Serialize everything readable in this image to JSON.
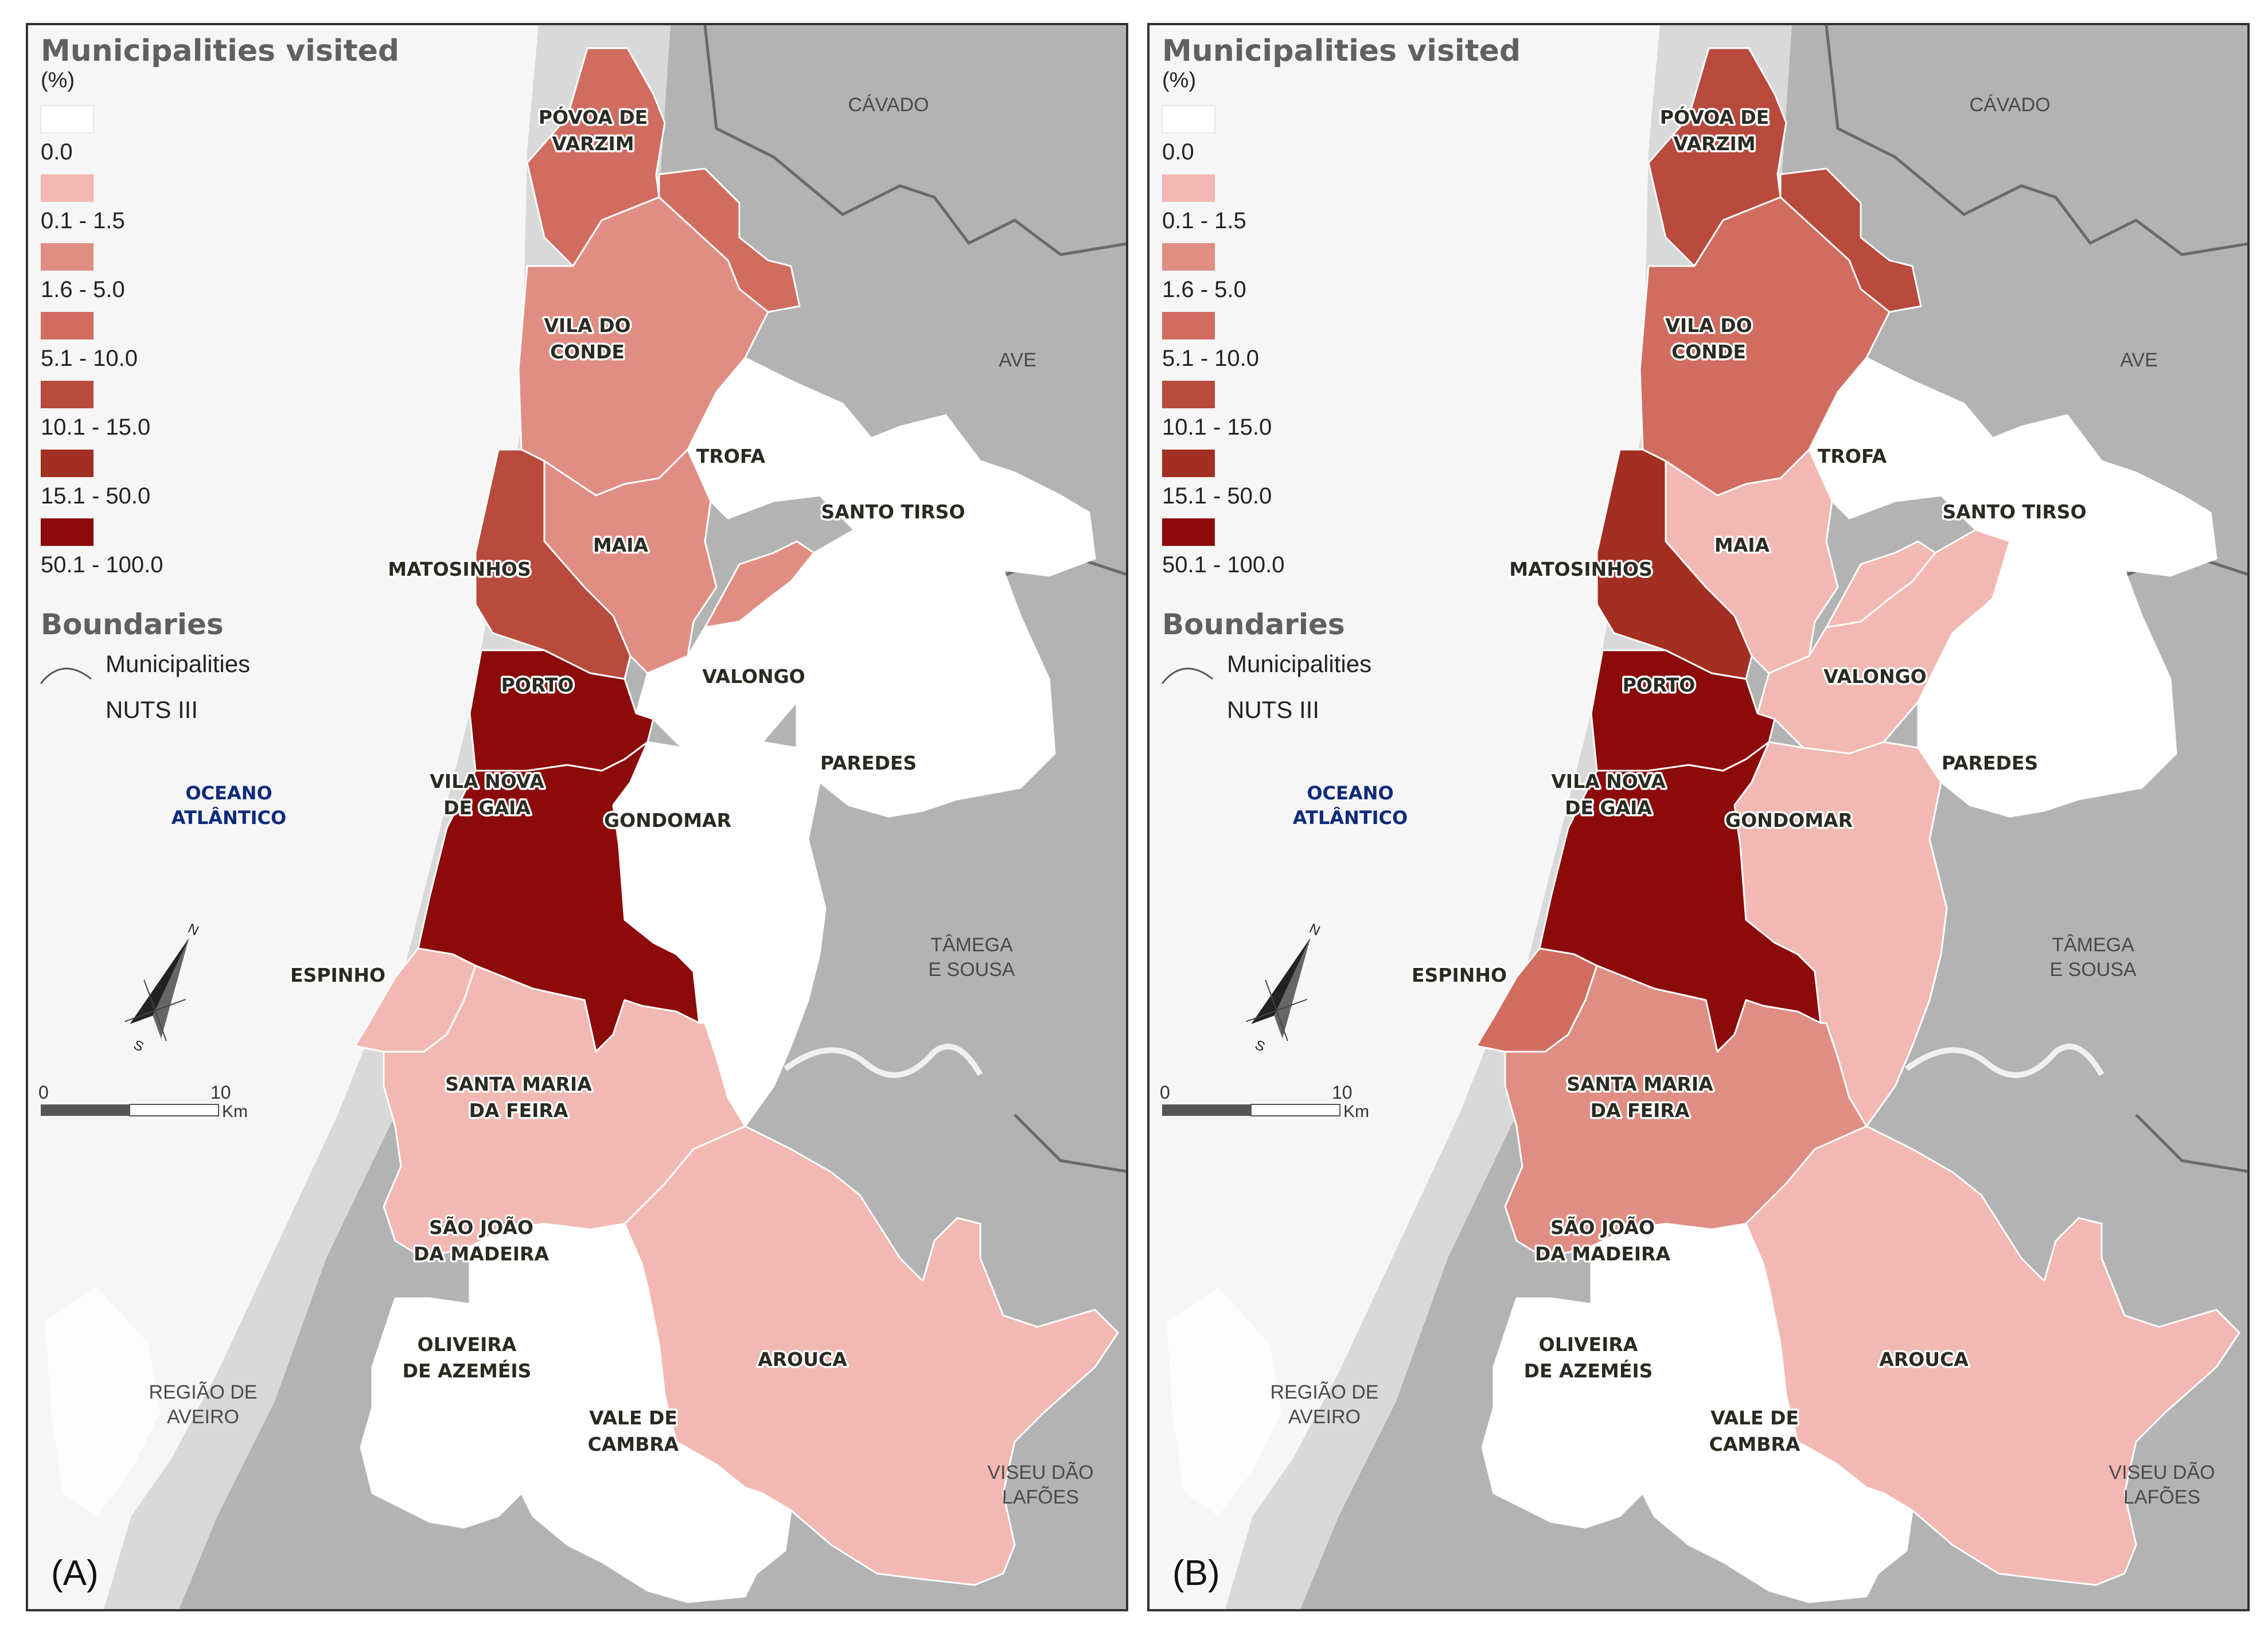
{
  "legend": {
    "title": "Municipalities visited",
    "unit": "(%)",
    "classes": [
      {
        "label": "0.0",
        "color": "#ffffff"
      },
      {
        "label": "0.1 - 1.5",
        "color": "#f2b8b3"
      },
      {
        "label": "1.6 - 5.0",
        "color": "#e08e84"
      },
      {
        "label": "5.1 - 10.0",
        "color": "#d16c60"
      },
      {
        "label": "10.1 - 15.0",
        "color": "#b84a3e"
      },
      {
        "label": "15.1 - 50.0",
        "color": "#a32e22"
      },
      {
        "label": "50.1 - 100.0",
        "color": "#8c0a0a"
      }
    ],
    "boundaries_title": "Boundaries",
    "boundary_municipalities": "Municipalities",
    "boundary_nuts": "NUTS III"
  },
  "scale": {
    "zero": "0",
    "ten": "10",
    "unit": "Km"
  },
  "ocean": {
    "line1": "OCEANO",
    "line2": "ATLÂNTICO"
  },
  "nuts_regions": {
    "cavado": "CÁVADO",
    "ave": "AVE",
    "tamega_line1": "TÂMEGA",
    "tamega_line2": "E SOUSA",
    "aveiro_line1": "REGIÃO DE",
    "aveiro_line2": "AVEIRO",
    "viseu_line1": "VISEU DÃO",
    "viseu_line2": "LAFÕES"
  },
  "municipality_labels": {
    "povoa_1": "PÓVOA DE",
    "povoa_2": "VARZIM",
    "vila_conde_1": "VILA DO",
    "vila_conde_2": "CONDE",
    "trofa": "TROFA",
    "santo_tirso": "SANTO TIRSO",
    "maia": "MAIA",
    "matosinhos": "MATOSINHOS",
    "porto": "PORTO",
    "valongo": "VALONGO",
    "paredes": "PAREDES",
    "gaia_1": "VILA NOVA",
    "gaia_2": "DE GAIA",
    "gondomar": "GONDOMAR",
    "espinho": "ESPINHO",
    "feira_1": "SANTA MARIA",
    "feira_2": "DA FEIRA",
    "sjm_1": "SÃO JOÃO",
    "sjm_2": "DA MADEIRA",
    "oaz_1": "OLIVEIRA",
    "oaz_2": "DE AZEMÉIS",
    "vale_1": "VALE DE",
    "vale_2": "CAMBRA",
    "arouca": "AROUCA"
  },
  "panels": [
    {
      "id": "a",
      "tag": "(A)",
      "classes": {
        "povoa": "5.1 - 10.0",
        "povoa_east": "5.1 - 10.0",
        "vila_conde": "1.6 - 5.0",
        "trofa": "0.0",
        "santo_tirso": "0.0",
        "maia": "1.6 - 5.0",
        "maia_east": "1.6 - 5.0",
        "matosinhos": "10.1 - 15.0",
        "porto": "50.1 - 100.0",
        "valongo": "0.0",
        "paredes": "0.0",
        "gaia": "50.1 - 100.0",
        "gondomar": "0.0",
        "espinho": "0.1 - 1.5",
        "feira": "0.1 - 1.5",
        "sjm": "0.0",
        "oaz": "0.0",
        "vale": "0.0",
        "arouca": "0.1 - 1.5"
      }
    },
    {
      "id": "b",
      "tag": "(B)",
      "classes": {
        "povoa": "10.1 - 15.0",
        "povoa_east": "10.1 - 15.0",
        "vila_conde": "5.1 - 10.0",
        "trofa": "0.0",
        "santo_tirso": "0.0",
        "maia": "0.1 - 1.5",
        "maia_east": "0.1 - 1.5",
        "matosinhos": "15.1 - 50.0",
        "porto": "50.1 - 100.0",
        "valongo": "0.1 - 1.5",
        "paredes": "0.0",
        "gaia": "50.1 - 100.0",
        "gondomar": "0.1 - 1.5",
        "espinho": "5.1 - 10.0",
        "feira": "1.6 - 5.0",
        "sjm": "0.0",
        "oaz": "0.0",
        "vale": "0.0",
        "arouca": "0.1 - 1.5"
      }
    }
  ]
}
